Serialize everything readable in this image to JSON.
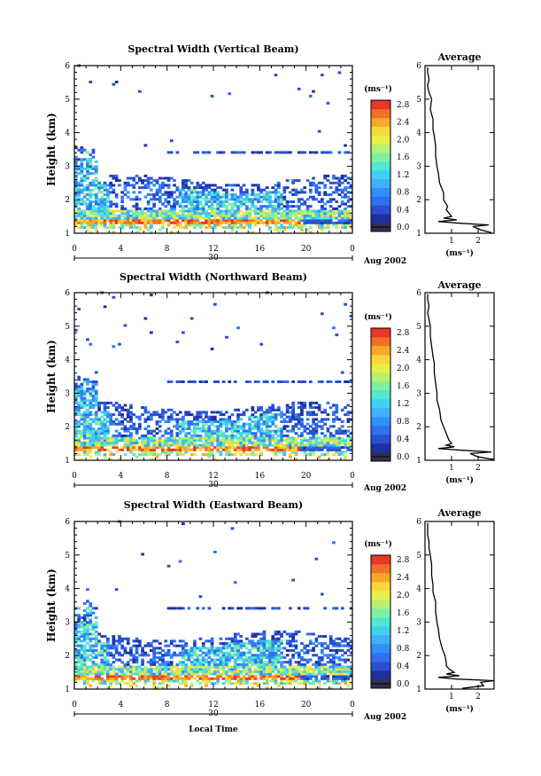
{
  "chart_data": {
    "type": "heatmap",
    "shared": {
      "xlabel": "Local Time",
      "ylabel": "Height (km)",
      "x_ticks": [
        "0",
        "4",
        "8",
        "12",
        "16",
        "20",
        "0"
      ],
      "y_ticks": [
        "1",
        "2",
        "3",
        "4",
        "5",
        "6"
      ],
      "xlim": [
        0,
        24
      ],
      "ylim": [
        1,
        6
      ],
      "day_label": "30",
      "date_label": "Aug 2002",
      "colorbar_unit": "(ms⁻¹)",
      "colorbar_ticks": [
        "0.0",
        "0.4",
        "0.8",
        "1.2",
        "1.6",
        "2.0",
        "2.4",
        "2.8"
      ],
      "colorbar_range": [
        0,
        3.0
      ],
      "colors": [
        "#303050",
        "#2030a0",
        "#2850d0",
        "#3070f0",
        "#3090f8",
        "#40b0f8",
        "#40d0f0",
        "#50e8d0",
        "#80f0a0",
        "#b8f070",
        "#e8f048",
        "#f8d838",
        "#f8a828",
        "#f07028",
        "#e83828"
      ],
      "avg_title": "Average",
      "avg_unit": "(ms⁻¹)",
      "avg_ticks": [
        "1",
        "2"
      ],
      "avg_xlim": [
        0,
        2.6
      ]
    },
    "panels": [
      {
        "title": "Spectral Width (Vertical Beam)",
        "average_profile": {
          "height": [
            1.02,
            1.1,
            1.2,
            1.25,
            1.3,
            1.35,
            1.4,
            1.45,
            1.5,
            1.6,
            1.7,
            1.8,
            2.0,
            2.2,
            2.5,
            2.8,
            3.0,
            3.3,
            3.6,
            3.9,
            4.1,
            4.4,
            4.7,
            5.0,
            5.2,
            5.4,
            5.6,
            5.8,
            5.95
          ],
          "width": [
            2.5,
            2.1,
            1.8,
            2.4,
            1.3,
            0.5,
            1.2,
            0.7,
            1.0,
            0.9,
            0.8,
            0.85,
            0.7,
            0.7,
            0.55,
            0.5,
            0.45,
            0.4,
            0.4,
            0.35,
            0.3,
            0.3,
            0.2,
            0.25,
            0.15,
            0.1,
            0.15,
            0.1,
            0.1
          ]
        }
      },
      {
        "title": "Spectral Width (Northward Beam)",
        "average_profile": {
          "height": [
            1.02,
            1.1,
            1.2,
            1.25,
            1.3,
            1.35,
            1.4,
            1.45,
            1.5,
            1.6,
            1.7,
            1.8,
            2.0,
            2.2,
            2.5,
            2.8,
            3.0,
            3.3,
            3.6,
            3.9,
            4.1,
            4.4,
            4.7,
            5.0,
            5.2,
            5.4,
            5.6,
            5.8,
            5.95
          ],
          "width": [
            2.6,
            2.0,
            1.7,
            2.5,
            1.4,
            0.5,
            1.1,
            0.8,
            1.0,
            0.9,
            0.85,
            0.8,
            0.7,
            0.6,
            0.55,
            0.45,
            0.45,
            0.4,
            0.35,
            0.35,
            0.3,
            0.25,
            0.2,
            0.2,
            0.15,
            0.1,
            0.15,
            0.1,
            0.1
          ]
        }
      },
      {
        "title": "Spectral Width (Eastward Beam)",
        "average_profile": {
          "height": [
            1.02,
            1.1,
            1.2,
            1.25,
            1.3,
            1.35,
            1.4,
            1.45,
            1.5,
            1.6,
            1.7,
            1.8,
            2.0,
            2.2,
            2.5,
            2.8,
            3.0,
            3.3,
            3.6,
            3.9,
            4.1,
            4.4,
            4.7,
            5.0,
            5.2,
            5.4,
            5.6,
            5.8,
            5.95
          ],
          "width": [
            1.4,
            2.2,
            2.1,
            2.6,
            1.2,
            0.5,
            1.3,
            0.8,
            1.1,
            0.9,
            0.8,
            0.8,
            0.75,
            0.65,
            0.55,
            0.5,
            0.45,
            0.4,
            0.4,
            0.3,
            0.3,
            0.25,
            0.25,
            0.2,
            0.15,
            0.15,
            0.1,
            0.1,
            0.1
          ]
        }
      }
    ]
  }
}
